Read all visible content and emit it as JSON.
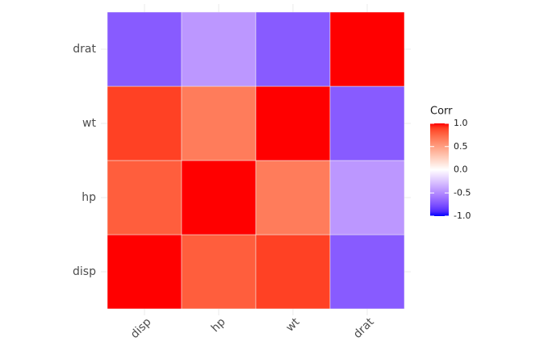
{
  "chart_data": {
    "type": "heatmap",
    "x_categories": [
      "disp",
      "hp",
      "wt",
      "drat"
    ],
    "y_categories": [
      "disp",
      "hp",
      "wt",
      "drat"
    ],
    "values": [
      [
        1,
        0.79,
        0.89,
        -0.71
      ],
      [
        0.79,
        1,
        0.66,
        -0.45
      ],
      [
        0.89,
        0.66,
        1,
        -0.71
      ],
      [
        -0.71,
        -0.45,
        -0.71,
        1
      ]
    ],
    "colors": {
      "low": "#0000FF",
      "mid": "#FFFFFF",
      "high": "#FF0000"
    },
    "legend_title": "Corr",
    "clim": [
      -1,
      1
    ],
    "cticks": [
      {
        "value": 1,
        "label": "1.0"
      },
      {
        "value": 0.5,
        "label": "0.5"
      },
      {
        "value": 0,
        "label": "0.0"
      },
      {
        "value": -0.5,
        "label": "-0.5"
      },
      {
        "value": -1,
        "label": "-1.0"
      }
    ]
  }
}
